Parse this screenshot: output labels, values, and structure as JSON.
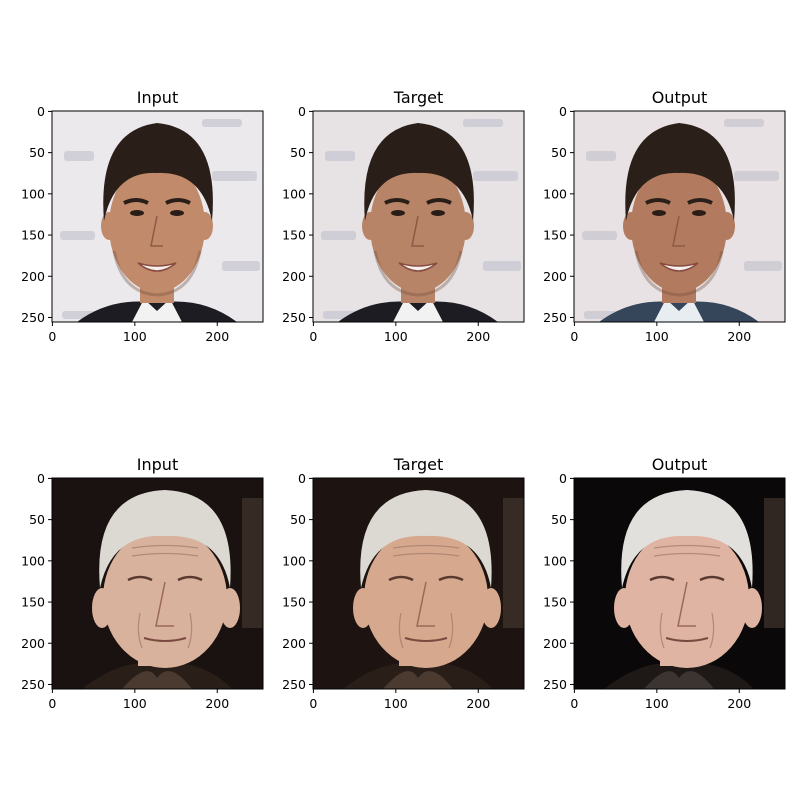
{
  "figure": {
    "rows": [
      {
        "panels": [
          {
            "title": "Input",
            "image": "young man with dark hair smiling, press backdrop",
            "palette": {
              "bg": "#ece9ec",
              "skin": "#c18a6a",
              "hair": "#2a1e18",
              "shirt": "#f2f2f2",
              "jacket": "#1c1c22"
            }
          },
          {
            "title": "Target",
            "image": "young man with dark hair smiling, press backdrop",
            "palette": {
              "bg": "#e7e3e4",
              "skin": "#b88468",
              "hair": "#2a1e18",
              "shirt": "#f2f2f2",
              "jacket": "#1c1c22"
            }
          },
          {
            "title": "Output",
            "image": "generated young man with dark hair smiling, smooth background",
            "palette": {
              "bg": "#e9e2e4",
              "skin": "#b27a5e",
              "hair": "#2b2019",
              "shirt": "#e8edf2",
              "jacket": "#35455a"
            }
          }
        ]
      },
      {
        "panels": [
          {
            "title": "Input",
            "image": "elderly man with white hair, dark background",
            "palette": {
              "bg": "#1a1210",
              "skin": "#d9b29e",
              "hair": "#dcd8d2",
              "shirt": "#4a3a30",
              "jacket": "#2a1e18"
            }
          },
          {
            "title": "Target",
            "image": "elderly man with white hair, dark background",
            "palette": {
              "bg": "#1d1412",
              "skin": "#d6a98f",
              "hair": "#dcd8d2",
              "shirt": "#4a3a30",
              "jacket": "#2a1e18"
            }
          },
          {
            "title": "Output",
            "image": "generated elderly man with white hair, dark background",
            "palette": {
              "bg": "#0a0808",
              "skin": "#e0b4a2",
              "hair": "#e2e0dc",
              "shirt": "#3c3430",
              "jacket": "#1e1816"
            }
          }
        ]
      }
    ],
    "axis": {
      "xticks": [
        "0",
        "100",
        "200"
      ],
      "yticks": [
        "0",
        "50",
        "100",
        "150",
        "200",
        "250"
      ]
    }
  }
}
